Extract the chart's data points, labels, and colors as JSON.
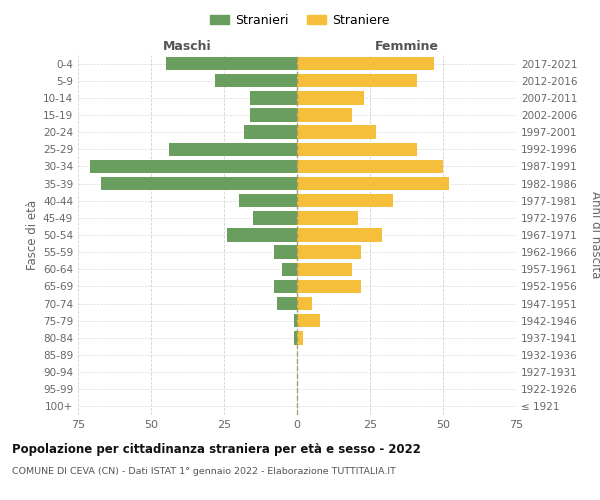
{
  "age_groups": [
    "100+",
    "95-99",
    "90-94",
    "85-89",
    "80-84",
    "75-79",
    "70-74",
    "65-69",
    "60-64",
    "55-59",
    "50-54",
    "45-49",
    "40-44",
    "35-39",
    "30-34",
    "25-29",
    "20-24",
    "15-19",
    "10-14",
    "5-9",
    "0-4"
  ],
  "birth_years": [
    "≤ 1921",
    "1922-1926",
    "1927-1931",
    "1932-1936",
    "1937-1941",
    "1942-1946",
    "1947-1951",
    "1952-1956",
    "1957-1961",
    "1962-1966",
    "1967-1971",
    "1972-1976",
    "1977-1981",
    "1982-1986",
    "1987-1991",
    "1992-1996",
    "1997-2001",
    "2002-2006",
    "2007-2011",
    "2012-2016",
    "2017-2021"
  ],
  "maschi": [
    0,
    0,
    0,
    0,
    1,
    1,
    7,
    8,
    5,
    8,
    24,
    15,
    20,
    67,
    71,
    44,
    18,
    16,
    16,
    28,
    45
  ],
  "femmine": [
    0,
    0,
    0,
    0,
    2,
    8,
    5,
    22,
    19,
    22,
    29,
    21,
    33,
    52,
    50,
    41,
    27,
    19,
    23,
    41,
    47
  ],
  "male_color": "#6a9e5e",
  "female_color": "#f5be3b",
  "grid_color": "#cccccc",
  "center_line_color": "#999966",
  "title": "Popolazione per cittadinanza straniera per età e sesso - 2022",
  "subtitle": "COMUNE DI CEVA (CN) - Dati ISTAT 1° gennaio 2022 - Elaborazione TUTTITALIA.IT",
  "ylabel_left": "Fasce di età",
  "ylabel_right": "Anni di nascita",
  "label_maschi": "Maschi",
  "label_femmine": "Femmine",
  "legend_stranieri": "Stranieri",
  "legend_straniere": "Straniere",
  "xlim": 75,
  "xticks": [
    75,
    50,
    25,
    0,
    25,
    50,
    75
  ]
}
